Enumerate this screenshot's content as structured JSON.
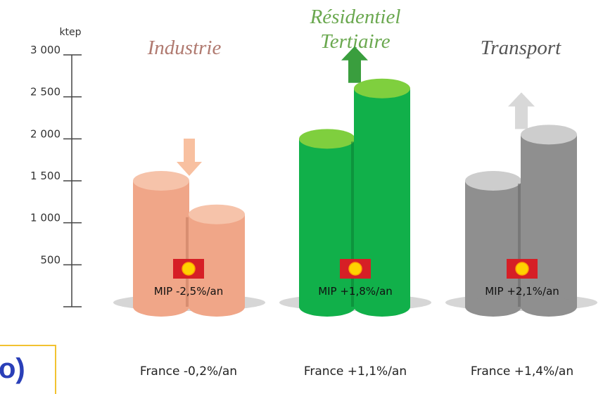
{
  "chart_data": {
    "type": "bar",
    "title": "",
    "ylabel": "ktep",
    "ylim": [
      0,
      3000
    ],
    "yticks": [
      "3 000",
      "2 500",
      "2 000",
      "1 500",
      "1 000",
      "500"
    ],
    "yvalues": [
      3000,
      2500,
      2000,
      1500,
      1000,
      500
    ],
    "groups": [
      {
        "name": "Industrie",
        "name_lines": [
          "Industrie"
        ],
        "title_color": "#b07a70",
        "mip_label": "MIP -2,5%/an",
        "france_label": "France -0,2%/an",
        "values": [
          1500,
          1100
        ],
        "trend": "down",
        "colors": {
          "body": "#f0a688",
          "shade": "#c57a5f",
          "top": "#f6c3aa",
          "arrow": "#f8c0a0"
        }
      },
      {
        "name": "Résidentiel Tertiaire",
        "name_lines": [
          "Résidentiel",
          "Tertiaire"
        ],
        "title_color": "#6aa84f",
        "mip_label": "MIP +1,8%/an",
        "france_label": "France +1,1%/an",
        "values": [
          2000,
          2600
        ],
        "trend": "up",
        "colors": {
          "body": "#11b04a",
          "shade": "#0b7d33",
          "top": "#7fcf3e",
          "arrow": "#3a9e3e"
        }
      },
      {
        "name": "Transport",
        "name_lines": [
          "Transport"
        ],
        "title_color": "#555555",
        "mip_label": "MIP +2,1%/an",
        "france_label": "France +1,4%/an",
        "values": [
          1500,
          2050
        ],
        "trend": "up",
        "colors": {
          "body": "#8f8f8f",
          "shade": "#666666",
          "top": "#cdcdcd",
          "arrow": "#d8d8d8"
        }
      }
    ]
  },
  "corner_text": "o)"
}
